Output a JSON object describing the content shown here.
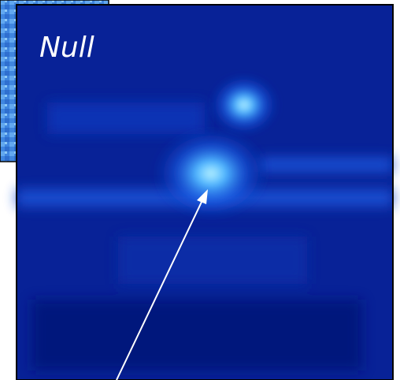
{
  "label": "Null"
}
